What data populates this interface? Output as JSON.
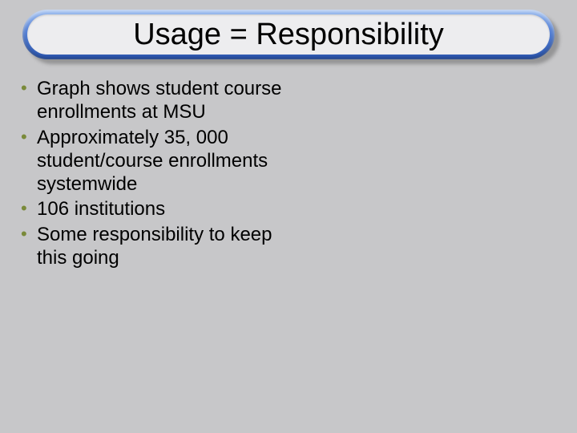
{
  "slide": {
    "title": "Usage = Responsibility",
    "title_fontsize": 38,
    "title_color": "#000000",
    "title_bar": {
      "outer_gradient_top": "#9fbff0",
      "outer_gradient_mid": "#5a85d8",
      "outer_gradient_bottom": "#2a55b0",
      "inner_fill": "#ededef",
      "border_radius": 32,
      "border_thickness": 6
    },
    "background_color": "#c7c7c9",
    "bullet_color": "#7a8a3a",
    "body_fontsize": 24,
    "body_color": "#000000",
    "bullets": [
      "Graph shows student course enrollments at MSU",
      "Approximately 35, 000 student/course enrollments systemwide",
      "106 institutions",
      "Some responsibility to keep this going"
    ]
  }
}
